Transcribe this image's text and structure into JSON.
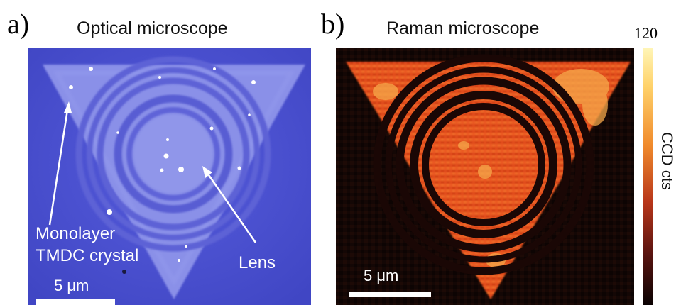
{
  "panel_a": {
    "letter": "a)",
    "title": "Optical microscope",
    "label_monolayer_line1": "Monolayer",
    "label_monolayer_line2": "TMDC crystal",
    "label_lens": "Lens",
    "scale_bar": "5 μm",
    "colors": {
      "background": "#4a4fd0",
      "crystal": "#8f95ea",
      "ring_dark": "#5257cc"
    }
  },
  "panel_b": {
    "letter": "b)",
    "title": "Raman microscope",
    "scale_bar": "5 μm",
    "colorbar": {
      "max_label": "120",
      "axis_label": "CCD cts"
    },
    "colors": {
      "background": "#120604",
      "crystal": "#e0481a",
      "hot": "#ffd070"
    }
  }
}
